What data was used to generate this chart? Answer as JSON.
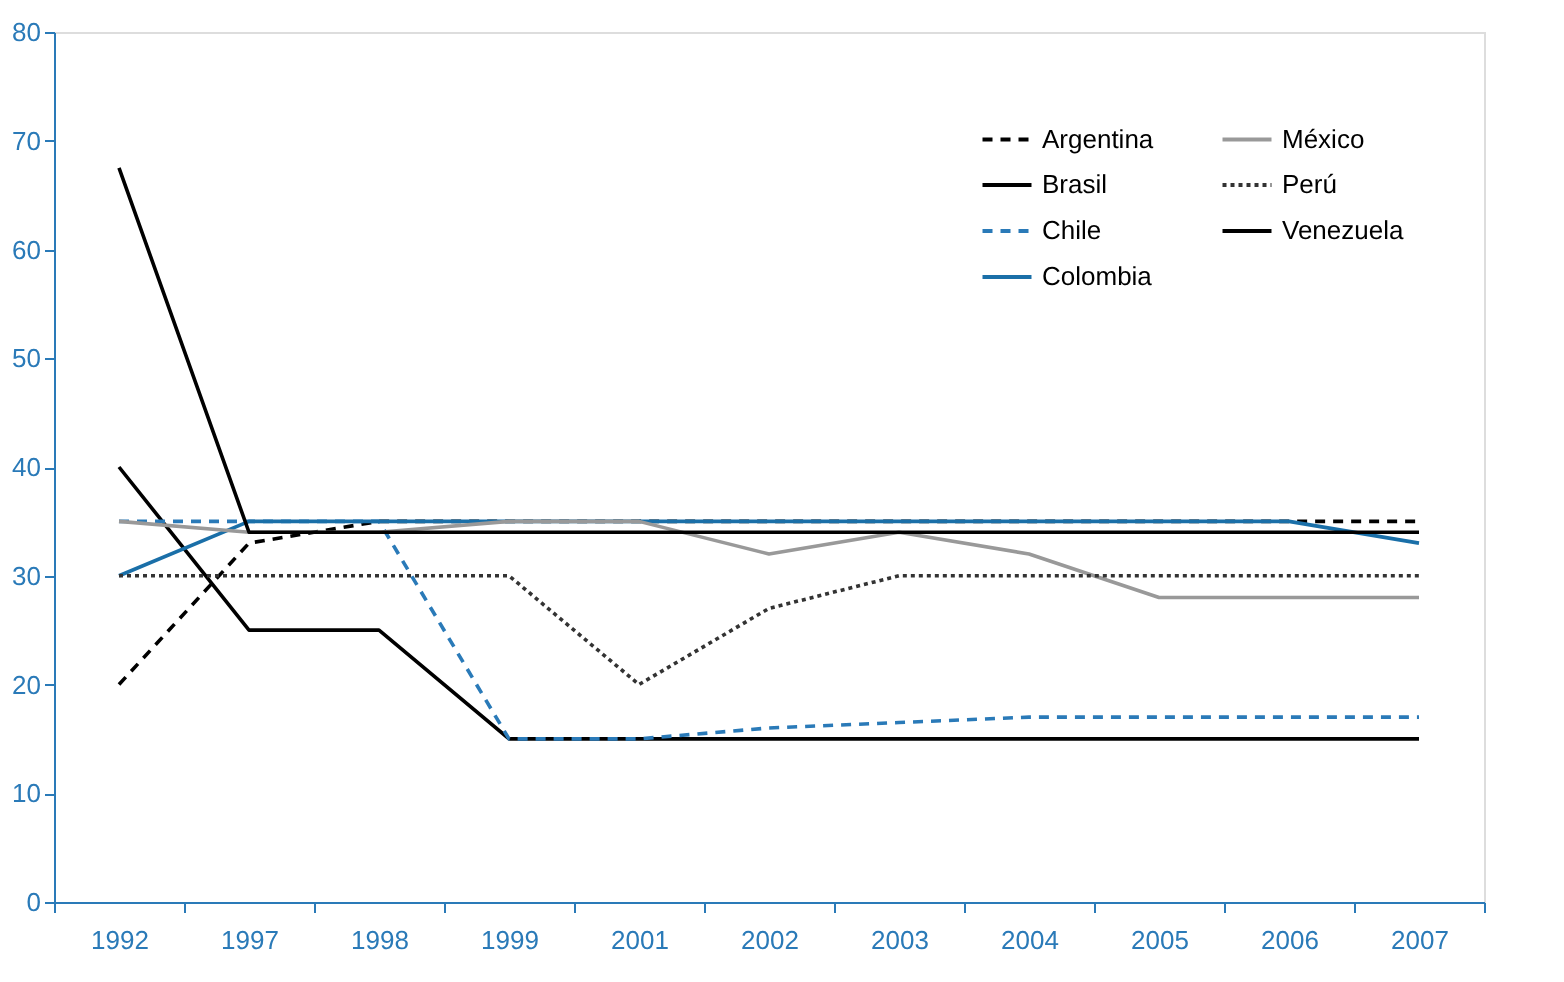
{
  "chart_data": {
    "type": "line",
    "categories": [
      "1992",
      "1997",
      "1998",
      "1999",
      "2001",
      "2002",
      "2003",
      "2004",
      "2005",
      "2006",
      "2007"
    ],
    "ylim": [
      0,
      80
    ],
    "yticks": [
      0,
      10,
      20,
      30,
      40,
      50,
      60,
      70,
      80
    ],
    "grid": false,
    "legend": "top right",
    "marker": "none",
    "series": [
      {
        "name": "Argentina",
        "color": "#000000",
        "line_style": "dashed",
        "values": [
          20,
          33,
          35,
          35,
          35,
          35,
          35,
          35,
          35,
          35,
          35
        ]
      },
      {
        "name": "Brasil",
        "color": "#000000",
        "line_style": "solid",
        "values": [
          40,
          25,
          25,
          15,
          15,
          15,
          15,
          15,
          15,
          15,
          15
        ]
      },
      {
        "name": "Chile",
        "color": "#2a7ab8",
        "line_style": "dashed",
        "values": [
          35,
          35,
          35,
          15,
          15,
          16,
          16.5,
          17,
          17,
          17,
          17
        ]
      },
      {
        "name": "Colombia",
        "color": "#1a6fa8",
        "line_style": "solid",
        "values": [
          30,
          35,
          35,
          35,
          35,
          35,
          35,
          35,
          35,
          35,
          33
        ]
      },
      {
        "name": "México",
        "color": "#999999",
        "line_style": "solid",
        "values": [
          35,
          34,
          34,
          35,
          35,
          32,
          34,
          32,
          28,
          28,
          28
        ]
      },
      {
        "name": "Perú",
        "color": "#333333",
        "line_style": "dotted",
        "values": [
          30,
          30,
          30,
          30,
          20,
          27,
          30,
          30,
          30,
          30,
          30
        ]
      },
      {
        "name": "Venezuela",
        "color": "#000000",
        "line_style": "solid",
        "values": [
          67.5,
          34,
          34,
          34,
          34,
          34,
          34,
          34,
          34,
          34,
          34
        ]
      }
    ]
  }
}
